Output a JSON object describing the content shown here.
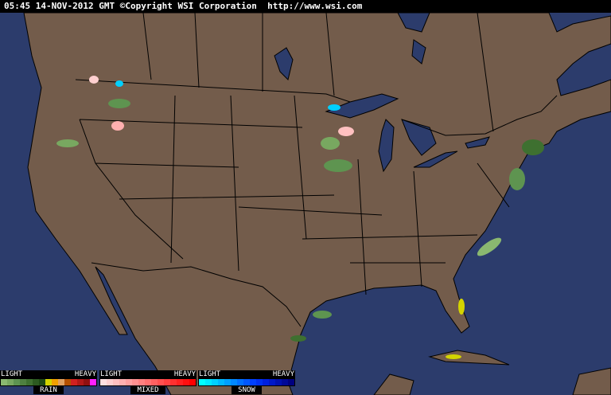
{
  "header": {
    "timestamp": "05:45 14-NOV-2012 GMT",
    "copyright": "©Copyright WSI Corporation",
    "url": "http://www.wsi.com"
  },
  "colors": {
    "ocean": "#2c3c6c",
    "land": "#735c4b",
    "border": "#000000",
    "lakes": "#2c3c6c"
  },
  "legend": [
    {
      "name": "RAIN",
      "light": "LIGHT",
      "heavy": "HEAVY",
      "colors": [
        "#8ab870",
        "#78a860",
        "#5e9450",
        "#4e8040",
        "#3e7030",
        "#2c5a20",
        "#1e4a14",
        "#d4d400",
        "#f0a000",
        "#e0a060",
        "#b45000",
        "#d02020",
        "#b01818",
        "#901010",
        "#ff20ff"
      ]
    },
    {
      "name": "MIXED",
      "light": "LIGHT",
      "heavy": "HEAVY",
      "colors": [
        "#ffe0e0",
        "#ffd0d0",
        "#ffc0c0",
        "#ffb0b0",
        "#ffa0a0",
        "#ff9090",
        "#ff8080",
        "#ff7070",
        "#ff6060",
        "#ff5050",
        "#ff4040",
        "#ff3030",
        "#ff2020",
        "#ff1010",
        "#ff0000"
      ]
    },
    {
      "name": "SNOW",
      "light": "LIGHT",
      "heavy": "HEAVY",
      "colors": [
        "#00ffff",
        "#00e8ff",
        "#00d0ff",
        "#00b8ff",
        "#00a0ff",
        "#0088ff",
        "#0070ff",
        "#0058ff",
        "#0040ff",
        "#0030f0",
        "#0020e0",
        "#0018c8",
        "#0010b0",
        "#000898",
        "#000080"
      ]
    }
  ]
}
